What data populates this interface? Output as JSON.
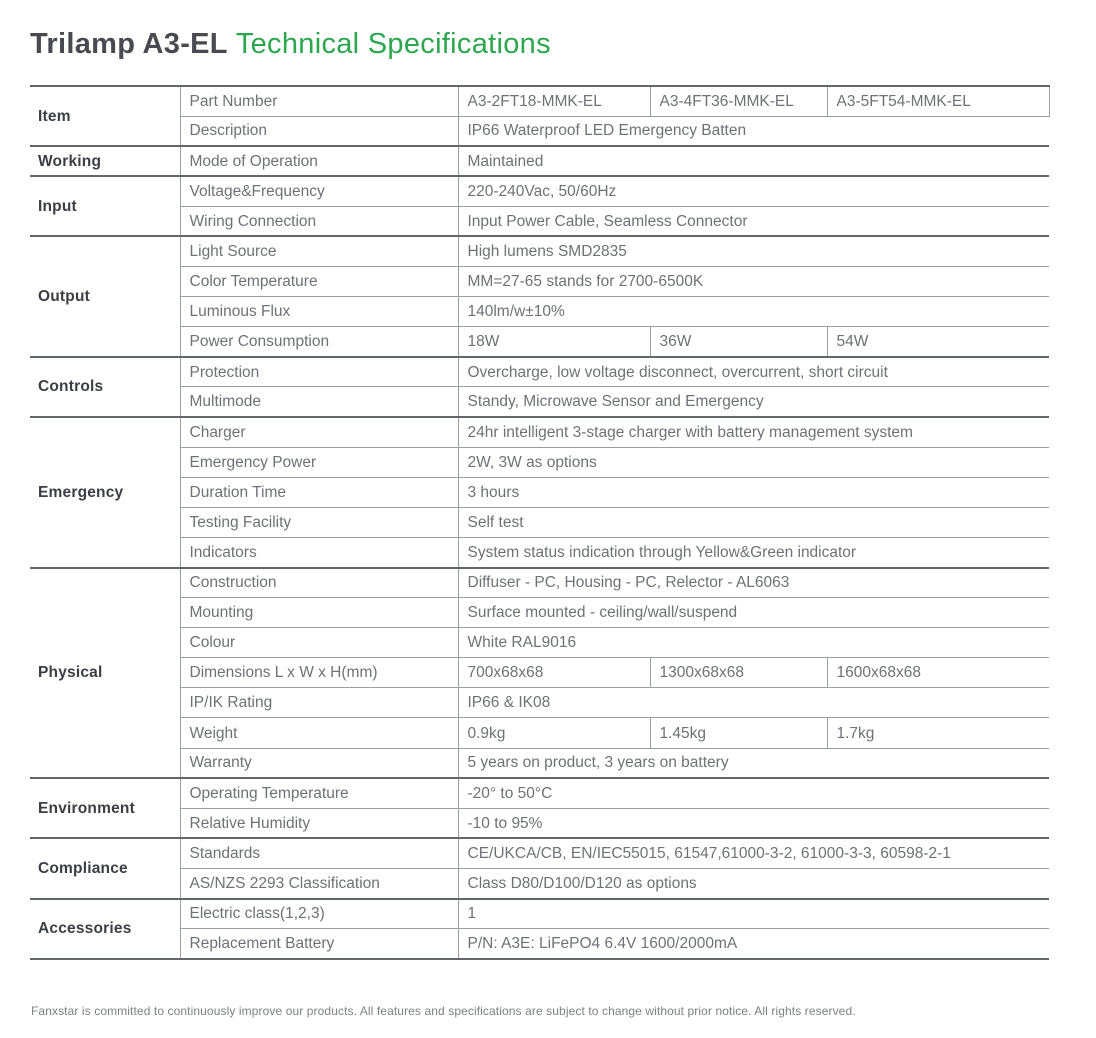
{
  "title": {
    "product": "Trilamp A3-EL",
    "suffix": "Technical Specifications"
  },
  "colors": {
    "accent_green": "#2EA64F",
    "title_dark": "#494A50",
    "footer_gray": "#7C7F85"
  },
  "table": {
    "groups": [
      {
        "category": "Item",
        "rows": [
          {
            "attr": "Part Number",
            "values": [
              "A3-2FT18-MMK-EL",
              "A3-4FT36-MMK-EL",
              "A3-5FT54-MMK-EL"
            ]
          },
          {
            "attr": "Description",
            "values": [
              "IP66 Waterproof LED Emergency Batten"
            ]
          }
        ]
      },
      {
        "category": "Working",
        "rows": [
          {
            "attr": "Mode of Operation",
            "values": [
              "Maintained"
            ]
          }
        ]
      },
      {
        "category": "Input",
        "rows": [
          {
            "attr": "Voltage&Frequency",
            "values": [
              "220-240Vac, 50/60Hz"
            ]
          },
          {
            "attr": "Wiring Connection",
            "values": [
              "Input Power Cable, Seamless Connector"
            ]
          }
        ]
      },
      {
        "category": "Output",
        "rows": [
          {
            "attr": "Light Source",
            "values": [
              "High lumens SMD2835"
            ]
          },
          {
            "attr": "Color Temperature",
            "values": [
              "MM=27-65 stands for 2700-6500K"
            ]
          },
          {
            "attr": "Luminous Flux",
            "values": [
              "140lm/w±10%"
            ]
          },
          {
            "attr": "Power Consumption",
            "values": [
              "18W",
              "36W",
              "54W"
            ]
          }
        ]
      },
      {
        "category": "Controls",
        "rows": [
          {
            "attr": "Protection",
            "values": [
              "Overcharge, low voltage disconnect, overcurrent, short circuit"
            ]
          },
          {
            "attr": "Multimode",
            "values": [
              "Standy, Microwave Sensor and Emergency"
            ]
          }
        ]
      },
      {
        "category": "Emergency",
        "rows": [
          {
            "attr": "Charger",
            "values": [
              "24hr intelligent 3-stage charger with battery management system"
            ]
          },
          {
            "attr": "Emergency Power",
            "values": [
              "2W, 3W as options"
            ]
          },
          {
            "attr": "Duration Time",
            "values": [
              "3 hours"
            ]
          },
          {
            "attr": "Testing Facility",
            "values": [
              "Self test"
            ]
          },
          {
            "attr": "Indicators",
            "values": [
              "System status indication through Yellow&Green indicator"
            ]
          }
        ]
      },
      {
        "category": "Physical",
        "rows": [
          {
            "attr": "Construction",
            "values": [
              "Diffuser - PC, Housing - PC, Relector - AL6063"
            ]
          },
          {
            "attr": "Mounting",
            "values": [
              "Surface mounted - ceiling/wall/suspend"
            ]
          },
          {
            "attr": "Colour",
            "values": [
              "White RAL9016"
            ]
          },
          {
            "attr": "Dimensions L x W x H(mm)",
            "values": [
              "700x68x68",
              "1300x68x68",
              "1600x68x68"
            ]
          },
          {
            "attr": "IP/IK Rating",
            "values": [
              "IP66 & IK08"
            ]
          },
          {
            "attr": "Weight",
            "values": [
              "0.9kg",
              "1.45kg",
              "1.7kg"
            ]
          },
          {
            "attr": "Warranty",
            "values": [
              "5 years on product, 3 years on battery"
            ]
          }
        ]
      },
      {
        "category": "Environment",
        "rows": [
          {
            "attr": "Operating Temperature",
            "values": [
              "-20° to 50°C"
            ]
          },
          {
            "attr": "Relative Humidity",
            "values": [
              "-10 to 95%"
            ]
          }
        ]
      },
      {
        "category": "Compliance",
        "rows": [
          {
            "attr": "Standards",
            "values": [
              "CE/UKCA/CB, EN/IEC55015, 61547,61000-3-2, 61000-3-3, 60598-2-1"
            ]
          },
          {
            "attr": "AS/NZS 2293 Classification",
            "values": [
              "Class D80/D100/D120 as options"
            ]
          }
        ]
      },
      {
        "category": "Accessories",
        "rows": [
          {
            "attr": "Electric class(1,2,3)",
            "values": [
              "1"
            ]
          },
          {
            "attr": "Replacement Battery",
            "values": [
              "P/N: A3E: LiFePO4 6.4V 1600/2000mA"
            ]
          }
        ]
      }
    ]
  },
  "footer": "Fanxstar is committed to continuously improve our products. All features and specifications are subject to change without prior notice. All rights reserved."
}
